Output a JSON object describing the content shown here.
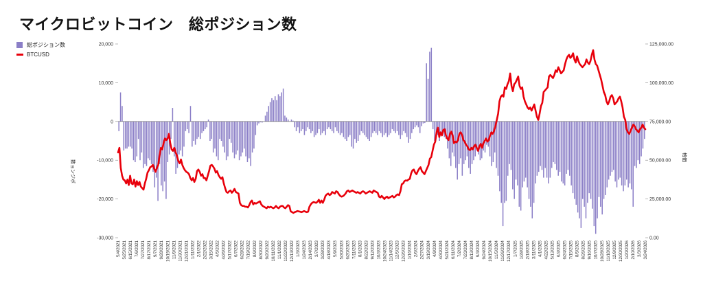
{
  "title": "マイクロビットコイン　総ポジション数",
  "legend": {
    "bar_label": "総ポジション数",
    "line_label": "BTCUSD"
  },
  "axis_titles": {
    "left": "数ョンジポ",
    "right": "格価"
  },
  "colors": {
    "bar": "#8b7fc7",
    "line": "#e8000b",
    "axis": "#888888",
    "zero_line": "#666666"
  },
  "chart_data": {
    "type": "bar",
    "title": "マイクロビットコイン　総ポジション数",
    "grid": false,
    "legend_position": "top-left",
    "left_axis": {
      "min": -30000,
      "max": 20000,
      "ticks": [
        -30000,
        -20000,
        -10000,
        0,
        10000,
        20000
      ],
      "tick_labels": [
        "-30,000",
        "-20,000",
        "-10,000",
        "0",
        "10,000",
        "20,000"
      ]
    },
    "right_axis": {
      "min": 0,
      "max": 125000,
      "ticks": [
        0,
        25000,
        50000,
        75000,
        100000,
        125000
      ],
      "tick_labels": [
        "0.00",
        "25,000.00",
        "50,000.00",
        "75,000.00",
        "100,000.00",
        "125,000.00"
      ]
    },
    "x_tick_labels": [
      "5/4/2021",
      "5/25/2021",
      "6/15/2021",
      "7/6/2021",
      "7/27/2021",
      "8/17/2021",
      "9/7/2021",
      "9/28/2021",
      "10/19/2021",
      "11/9/2021",
      "11/30/2021",
      "12/21/2021",
      "1/11/2022",
      "2/1/2022",
      "2/22/2022",
      "3/15/2022",
      "4/5/2022",
      "4/26/2022",
      "5/17/2022",
      "6/7/2022",
      "6/28/2022",
      "7/19/2022",
      "8/9/2022",
      "8/30/2022",
      "9/20/2022",
      "10/11/2022",
      "11/1/2022",
      "11/22/2022",
      "12/13/2022",
      "1/3/2023",
      "1/24/2023",
      "2/14/2023",
      "3/7/2023",
      "3/28/2023",
      "4/18/2023",
      "5/9/2023",
      "5/30/2023",
      "6/20/2023",
      "7/11/2023",
      "8/1/2023",
      "8/22/2023",
      "9/12/2023",
      "10/3/2023",
      "10/24/2023",
      "11/14/2023",
      "12/5/2023",
      "12/26/2023",
      "1/16/2024",
      "2/6/2024",
      "2/27/2024",
      "3/19/2024",
      "4/9/2024",
      "4/30/2024",
      "5/21/2024",
      "6/11/2024",
      "7/2/2024",
      "7/23/2024",
      "8/13/2024",
      "9/3/2024",
      "9/24/2024",
      "10/15/2024",
      "11/5/2024",
      "11/26/2024",
      "12/17/2024",
      "1/7/2025",
      "1/28/2025",
      "2/18/2025",
      "3/11/2025",
      "4/1/2025",
      "4/22/2025",
      "5/13/2025",
      "6/3/2025",
      "6/24/2025",
      "7/15/2025",
      "8/5/2025",
      "8/26/2025",
      "9/16/2025",
      "10/7/2025",
      "10/28/2025",
      "11/18/2025",
      "12/9/2025",
      "12/30/2025",
      "1/20/2026",
      "2/10/2026",
      "3/3/2026",
      "3/24/2026"
    ],
    "series": [
      {
        "name": "総ポジション数",
        "kind": "bar",
        "axis": "left",
        "values": [
          -2500,
          7500,
          4000,
          -7500,
          -7000,
          -7000,
          -6500,
          -6500,
          -7000,
          -10000,
          -10500,
          -9000,
          -4500,
          -10000,
          -8000,
          -12000,
          -11000,
          -11500,
          -9500,
          -10000,
          -11000,
          -13000,
          -17000,
          -14500,
          -20500,
          -11000,
          -16500,
          -18000,
          -15500,
          -20000,
          -10500,
          -8500,
          -4500,
          3500,
          -9000,
          -13500,
          -12000,
          -8500,
          -7500,
          -9000,
          -6500,
          -2500,
          -2000,
          -3000,
          4000,
          -6500,
          -5000,
          -6000,
          -4500,
          -4000,
          -4500,
          -3000,
          -2500,
          -2000,
          -1500,
          500,
          -5000,
          -4500,
          -8000,
          -7000,
          -9000,
          -10000,
          -4500,
          -5000,
          -6500,
          -8000,
          -10000,
          -9000,
          -4500,
          -5500,
          -8000,
          -9500,
          -8500,
          -7500,
          -10000,
          -9000,
          -8000,
          -7000,
          -9000,
          -10500,
          -9500,
          -11500,
          -8000,
          -7000,
          -3500,
          -1000,
          -500,
          -200,
          -300,
          0,
          1500,
          2500,
          4000,
          5000,
          6000,
          5500,
          6500,
          5500,
          7000,
          6500,
          7500,
          8500,
          1500,
          1000,
          500,
          0,
          500,
          200,
          -1500,
          -2500,
          -1500,
          -3000,
          -2500,
          -2000,
          -3500,
          -2500,
          -1500,
          -2000,
          -3000,
          -2500,
          -4000,
          -3500,
          -3000,
          -2000,
          -3500,
          -3000,
          -2500,
          -3500,
          -2000,
          -1500,
          -2000,
          -2500,
          -3000,
          -1500,
          -2500,
          -3000,
          -3500,
          -3000,
          -4000,
          -4500,
          -5000,
          -4000,
          -3500,
          -6500,
          -7000,
          -4500,
          -5500,
          -5000,
          -3500,
          -2500,
          -3000,
          -3500,
          -4000,
          -4500,
          -5000,
          -4000,
          -3000,
          -2500,
          -3000,
          -3500,
          -2500,
          -3000,
          -4000,
          -3500,
          -3000,
          -4000,
          -3500,
          -3000,
          -2000,
          -2500,
          -3000,
          -2500,
          -3500,
          -4500,
          -3500,
          -2500,
          -3000,
          -4000,
          -5500,
          -4500,
          -3000,
          -2000,
          -1500,
          -1000,
          -1500,
          -3000,
          -1200,
          -500,
          -400,
          15000,
          11000,
          18000,
          19000,
          -2000,
          -5000,
          -4000,
          -3500,
          -5000,
          -3000,
          -2500,
          -4000,
          -4500,
          -7000,
          -9500,
          -11500,
          -8000,
          -9000,
          -12000,
          -15000,
          -11000,
          -9500,
          -14000,
          -11000,
          -10000,
          -9000,
          -12000,
          -13500,
          -11000,
          -10000,
          -9000,
          -7500,
          -8500,
          -10000,
          -9500,
          -7500,
          -8000,
          -6000,
          -6500,
          -9000,
          -11500,
          -10500,
          -8000,
          -12000,
          -14000,
          -18000,
          -21000,
          -27000,
          -21000,
          -20500,
          -14000,
          -11000,
          -12500,
          -17500,
          -20000,
          -15000,
          -16500,
          -22000,
          -23000,
          -17000,
          -15500,
          -14500,
          -17000,
          -20000,
          -22000,
          -25000,
          -21000,
          -16000,
          -14000,
          -13000,
          -11500,
          -12500,
          -14500,
          -12000,
          -14500,
          -16000,
          -14500,
          -12000,
          -10500,
          -11000,
          -12500,
          -14000,
          -13000,
          -15500,
          -16000,
          -16500,
          -13500,
          -12500,
          -14000,
          -16500,
          -18500,
          -20000,
          -21500,
          -23500,
          -25000,
          -27500,
          -20000,
          -22000,
          -25000,
          -21000,
          -18500,
          -20000,
          -22500,
          -27000,
          -29000,
          -25000,
          -19500,
          -22000,
          -24000,
          -20000,
          -19000,
          -17000,
          -15000,
          -14000,
          -13000,
          -12500,
          -15500,
          -17000,
          -15000,
          -14500,
          -16500,
          -18000,
          -16500,
          -15000,
          -17000,
          -16000,
          -17500,
          -22000,
          -11500,
          -12000,
          -10000,
          -11000,
          -9000,
          -7000,
          -4500
        ]
      },
      {
        "name": "BTCUSD",
        "kind": "line",
        "axis": "right",
        "values": [
          55000,
          58000,
          45000,
          40000,
          37500,
          37000,
          35000,
          37500,
          34000,
          40000,
          35000,
          34500,
          37500,
          33000,
          36500,
          34000,
          36000,
          33000,
          32000,
          31000,
          35000,
          38000,
          42000,
          43500,
          45500,
          46000,
          47000,
          44500,
          42500,
          45000,
          47000,
          53000,
          58000,
          57000,
          61000,
          64000,
          63000,
          64000,
          67000,
          61000,
          57000,
          56000,
          58000,
          55000,
          53000,
          49500,
          48000,
          50500,
          47000,
          45000,
          43500,
          42500,
          42000,
          41000,
          38500,
          37000,
          38500,
          36000,
          38000,
          43000,
          44000,
          42500,
          40000,
          41000,
          38500,
          38500,
          37000,
          40000,
          43000,
          46500,
          47000,
          46000,
          44500,
          42000,
          43000,
          40500,
          39000,
          38000,
          39000,
          35000,
          32000,
          29500,
          29000,
          30000,
          30500,
          29000,
          30000,
          31500,
          29500,
          29000,
          28500,
          22500,
          21000,
          20500,
          20500,
          20000,
          20000,
          19500,
          21000,
          23000,
          24000,
          21500,
          22500,
          22000,
          22500,
          23000,
          23500,
          21500,
          20500,
          20000,
          19500,
          19000,
          20000,
          19500,
          20000,
          19500,
          19000,
          19500,
          20500,
          19500,
          19000,
          20000,
          20500,
          20500,
          19500,
          19000,
          20000,
          21000,
          20500,
          17000,
          16500,
          16000,
          16500,
          16800,
          17200,
          17000,
          16800,
          16500,
          16800,
          17200,
          16800,
          16500,
          16800,
          20000,
          21500,
          22500,
          23000,
          22800,
          22500,
          23200,
          24500,
          22500,
          24000,
          22500,
          24500,
          27000,
          28000,
          28500,
          27500,
          28000,
          29500,
          29000,
          28500,
          30000,
          29500,
          28000,
          27000,
          26500,
          26800,
          27500,
          28500,
          30000,
          30500,
          29500,
          30000,
          30500,
          30000,
          29500,
          29000,
          29500,
          29000,
          28500,
          29500,
          30000,
          29500,
          28500,
          29000,
          29500,
          30000,
          29500,
          29000,
          30500,
          30000,
          29500,
          29000,
          26500,
          26000,
          27000,
          26000,
          25000,
          26000,
          26500,
          25500,
          26000,
          26500,
          27000,
          26000,
          26500,
          27500,
          28000,
          27500,
          30000,
          34500,
          35000,
          36500,
          37000,
          36800,
          37500,
          38000,
          41500,
          43500,
          44000,
          42000,
          41000,
          43000,
          44500,
          45500,
          43000,
          42000,
          41000,
          43000,
          45000,
          47000,
          51000,
          52000,
          56000,
          60000,
          62000,
          68000,
          71000,
          65000,
          68000,
          66000,
          69500,
          70000,
          66000,
          64000,
          63000,
          67000,
          68500,
          66000,
          61000,
          62000,
          61500,
          63000,
          67000,
          68000,
          66500,
          63000,
          62000,
          60000,
          59000,
          57000,
          56500,
          58000,
          57000,
          59000,
          60000,
          58000,
          56000,
          59000,
          60500,
          58000,
          61000,
          62500,
          64000,
          62000,
          63000,
          66000,
          68000,
          67000,
          69000,
          72000,
          76000,
          80000,
          88000,
          91000,
          92000,
          91000,
          97000,
          96000,
          99000,
          101000,
          106000,
          98000,
          94500,
          99000,
          100000,
          102000,
          104000,
          98000,
          96000,
          97000,
          91000,
          88000,
          86000,
          84000,
          83000,
          84000,
          82000,
          84000,
          86000,
          82000,
          78000,
          76000,
          80000,
          85000,
          87000,
          94000,
          95000,
          96000,
          97000,
          104000,
          105000,
          104000,
          103000,
          105000,
          108000,
          107000,
          110000,
          108000,
          106000,
          107000,
          108000,
          112000,
          115000,
          117000,
          118000,
          116000,
          117000,
          119000,
          115000,
          113000,
          117000,
          114000,
          112000,
          111000,
          110000,
          111000,
          112000,
          115000,
          113000,
          112000,
          114000,
          118000,
          121000,
          115000,
          112000,
          111000,
          108000,
          105000,
          102000,
          98000,
          94000,
          92000,
          88000,
          86000,
          88000,
          91000,
          92000,
          90000,
          86000,
          87000,
          88000,
          90000,
          91000,
          88000,
          84000,
          78000,
          76000,
          70000,
          68000,
          67000,
          69000,
          71000,
          73000,
          72000,
          70000,
          69000,
          68000,
          70000,
          71000,
          73000,
          71000,
          70000
        ]
      }
    ]
  }
}
